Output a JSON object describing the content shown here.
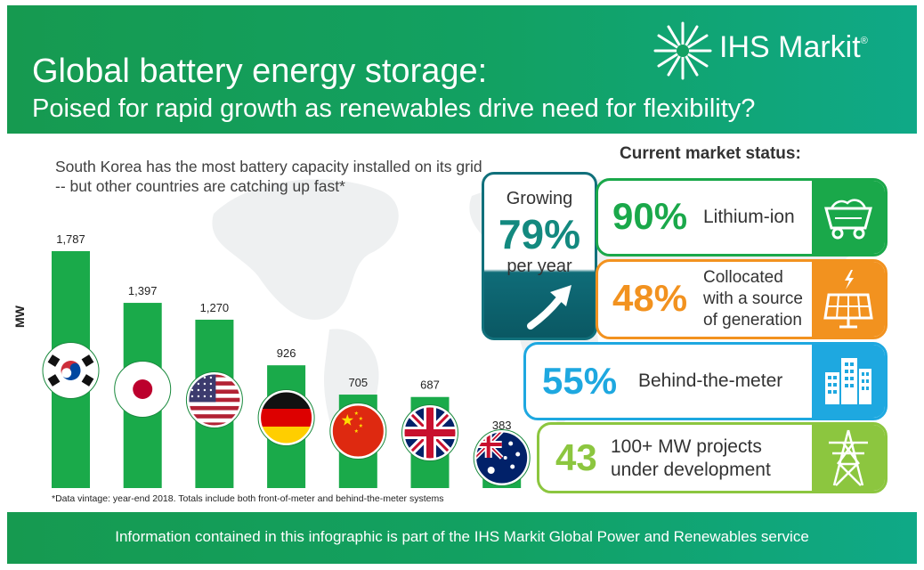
{
  "header": {
    "title": "Global battery energy storage:",
    "subtitle": "Poised for rapid growth as renewables drive need for flexibility?",
    "brand": "IHS Markit",
    "brand_mark": "®"
  },
  "intro": "South Korea has the most battery capacity installed on its grid -- but other countries are catching up fast*",
  "chart_data": {
    "type": "bar",
    "categories": [
      "South Korea",
      "Japan",
      "United States",
      "Germany",
      "China",
      "United Kingdom",
      "Australia"
    ],
    "values": [
      1787,
      1397,
      1270,
      926,
      705,
      687,
      383
    ],
    "value_labels": [
      "1,787",
      "1,397",
      "1,270",
      "926",
      "705",
      "687",
      "383"
    ],
    "ylabel": "MW",
    "title": "",
    "xlabel": "",
    "ylim": [
      0,
      1787
    ],
    "grid": false,
    "bar_color": "#1aaa4a",
    "category_display": "flag icons"
  },
  "footnote": "*Data vintage: year-end 2018. Totals include both front-of-meter and behind-the-meter systems",
  "status": {
    "title": "Current market status:",
    "growth": {
      "label": "Growing",
      "value": "79%",
      "per": "per year",
      "color": "#11707b"
    },
    "cards": [
      {
        "value": "90%",
        "label_lines": [
          "Lithium-ion"
        ],
        "color": "#1aa84a",
        "icon": "mine-cart-icon"
      },
      {
        "value": "48%",
        "label_lines": [
          "Collocated",
          "with a source",
          "of generation"
        ],
        "color": "#f2921f",
        "icon": "solar-panel-icon"
      },
      {
        "value": "55%",
        "label_lines": [
          "Behind-the-meter"
        ],
        "color": "#1ea8e0",
        "icon": "buildings-icon"
      },
      {
        "value": "43",
        "label_lines": [
          "100+ MW projects",
          "under development"
        ],
        "color": "#8cc63f",
        "icon": "power-tower-icon"
      }
    ]
  },
  "footer": "Information contained in this infographic is part of the IHS Markit Global Power and Renewables service"
}
